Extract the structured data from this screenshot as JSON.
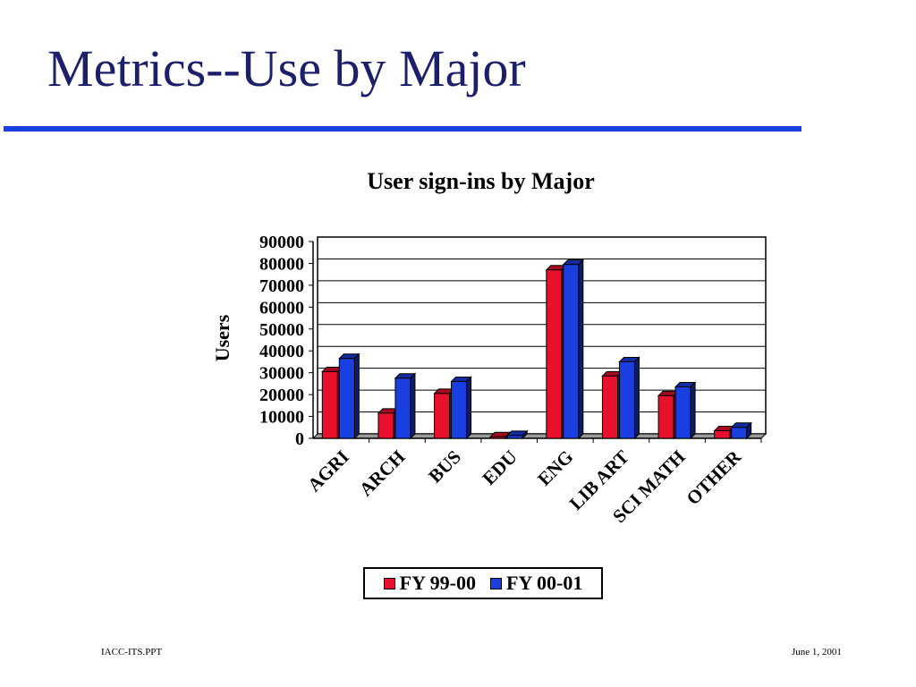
{
  "slide": {
    "title": "Metrics--Use by Major",
    "footer_left": "IACC-ITS.PPT",
    "footer_right": "June 1, 2001",
    "title_color": "#1c1f6b",
    "rule_color": "#1a3fe0"
  },
  "chart_data": {
    "type": "bar",
    "title": "User sign-ins by Major",
    "xlabel": "",
    "ylabel": "Users",
    "ylim": [
      0,
      90000
    ],
    "yticks": [
      0,
      10000,
      20000,
      30000,
      40000,
      50000,
      60000,
      70000,
      80000,
      90000
    ],
    "grid": true,
    "legend_position": "bottom",
    "categories": [
      "AGRI",
      "ARCH",
      "BUS",
      "EDU",
      "ENG",
      "LIB ART",
      "SCI MATH",
      "OTHER"
    ],
    "series": [
      {
        "name": "FY 99-00",
        "color": "#e8112d",
        "values": [
          30500,
          11500,
          20500,
          700,
          77000,
          28500,
          19500,
          3500
        ]
      },
      {
        "name": "FY 00-01",
        "color": "#1a3fe0",
        "values": [
          36500,
          27500,
          26000,
          1300,
          79500,
          35000,
          23500,
          5000
        ]
      }
    ]
  }
}
